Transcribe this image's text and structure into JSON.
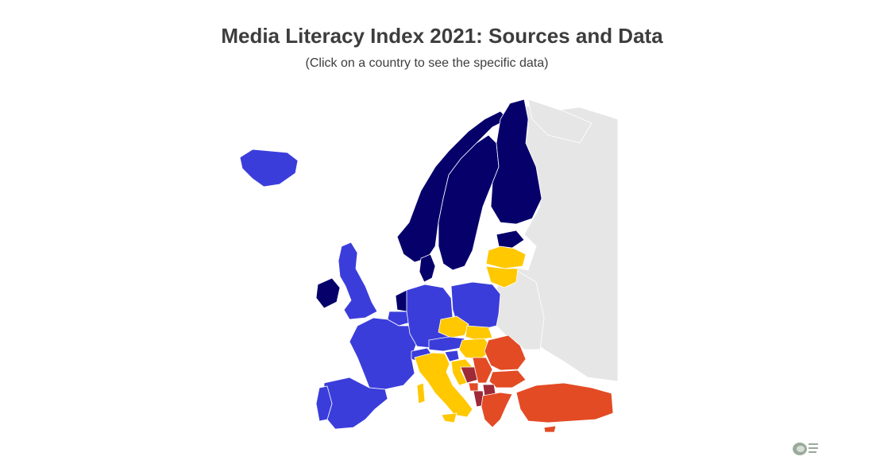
{
  "title": "Media Literacy Index 2021: Sources and Data",
  "subtitle": "(Click on a country to see the specific data)",
  "colors": {
    "cluster_1": "#06006b",
    "cluster_2": "#3b3ddb",
    "cluster_3": "#ffc800",
    "cluster_4": "#e34b25",
    "cluster_5": "#9e2a37",
    "no_data": "#e6e6e6"
  },
  "countries": [
    {
      "name": "Finland",
      "cluster": "cluster_1"
    },
    {
      "name": "Sweden",
      "cluster": "cluster_1"
    },
    {
      "name": "Norway",
      "cluster": "cluster_1"
    },
    {
      "name": "Denmark",
      "cluster": "cluster_1"
    },
    {
      "name": "Estonia",
      "cluster": "cluster_1"
    },
    {
      "name": "Ireland",
      "cluster": "cluster_1"
    },
    {
      "name": "Netherlands",
      "cluster": "cluster_1"
    },
    {
      "name": "Iceland",
      "cluster": "cluster_2"
    },
    {
      "name": "United Kingdom",
      "cluster": "cluster_2"
    },
    {
      "name": "France",
      "cluster": "cluster_2"
    },
    {
      "name": "Spain",
      "cluster": "cluster_2"
    },
    {
      "name": "Portugal",
      "cluster": "cluster_2"
    },
    {
      "name": "Belgium",
      "cluster": "cluster_2"
    },
    {
      "name": "Germany",
      "cluster": "cluster_2"
    },
    {
      "name": "Poland",
      "cluster": "cluster_2"
    },
    {
      "name": "Austria",
      "cluster": "cluster_2"
    },
    {
      "name": "Switzerland",
      "cluster": "cluster_2"
    },
    {
      "name": "Slovenia",
      "cluster": "cluster_2"
    },
    {
      "name": "Latvia",
      "cluster": "cluster_3"
    },
    {
      "name": "Lithuania",
      "cluster": "cluster_3"
    },
    {
      "name": "Czech Republic",
      "cluster": "cluster_3"
    },
    {
      "name": "Slovakia",
      "cluster": "cluster_3"
    },
    {
      "name": "Hungary",
      "cluster": "cluster_3"
    },
    {
      "name": "Italy",
      "cluster": "cluster_3"
    },
    {
      "name": "Croatia",
      "cluster": "cluster_3"
    },
    {
      "name": "Romania",
      "cluster": "cluster_4"
    },
    {
      "name": "Bulgaria",
      "cluster": "cluster_4"
    },
    {
      "name": "Serbia",
      "cluster": "cluster_4"
    },
    {
      "name": "Montenegro",
      "cluster": "cluster_4"
    },
    {
      "name": "Greece",
      "cluster": "cluster_4"
    },
    {
      "name": "Turkey",
      "cluster": "cluster_4"
    },
    {
      "name": "Cyprus",
      "cluster": "cluster_4"
    },
    {
      "name": "Bosnia and Herzegovina",
      "cluster": "cluster_5"
    },
    {
      "name": "North Macedonia",
      "cluster": "cluster_5"
    },
    {
      "name": "Albania",
      "cluster": "cluster_5"
    }
  ]
}
